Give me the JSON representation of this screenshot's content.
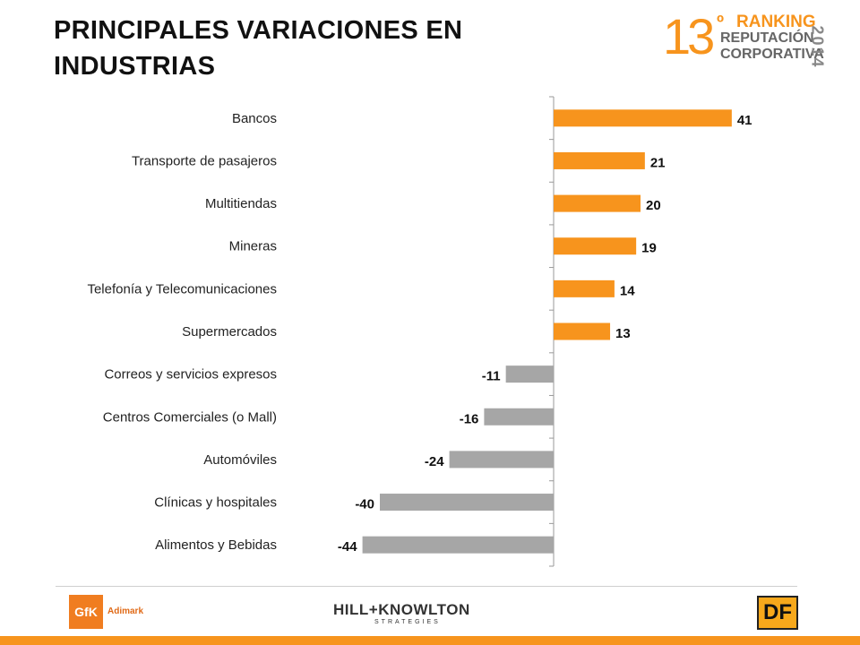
{
  "title": "PRINCIPALES VARIACIONES EN INDUSTRIAS",
  "badge": {
    "number": "13",
    "ordinal": "º",
    "line1": "RANKING",
    "line2": "REPUTACIÓN",
    "line3": "CORPORATIVA",
    "year": "2014"
  },
  "chart_data": {
    "type": "bar",
    "orientation": "horizontal",
    "categories": [
      "Bancos",
      "Transporte de pasajeros",
      "Multitiendas",
      "Mineras",
      "Telefonía y Telecomunicaciones",
      "Supermercados",
      "Correos y servicios expresos",
      "Centros Comerciales (o Mall)",
      "Automóviles",
      "Clínicas y hospitales",
      "Alimentos y Bebidas"
    ],
    "values": [
      41,
      21,
      20,
      19,
      14,
      13,
      -11,
      -16,
      -24,
      -40,
      -44
    ],
    "data_labels": [
      "41",
      "21",
      "20",
      "19",
      "14",
      "13",
      "-11",
      "-16",
      "-24",
      "-40",
      "-44"
    ],
    "positive_color": "#f7941d",
    "negative_color": "#a6a6a6",
    "xlim": [
      -44,
      41
    ],
    "grid": false,
    "legend": "none"
  },
  "footer": {
    "gfk": "GfK",
    "gfk_sub": "Adimark",
    "hk": "HILL+KNOWLTON",
    "hk_sub": "STRATEGIES",
    "df": "DF"
  },
  "colors": {
    "accent": "#f7941d"
  }
}
